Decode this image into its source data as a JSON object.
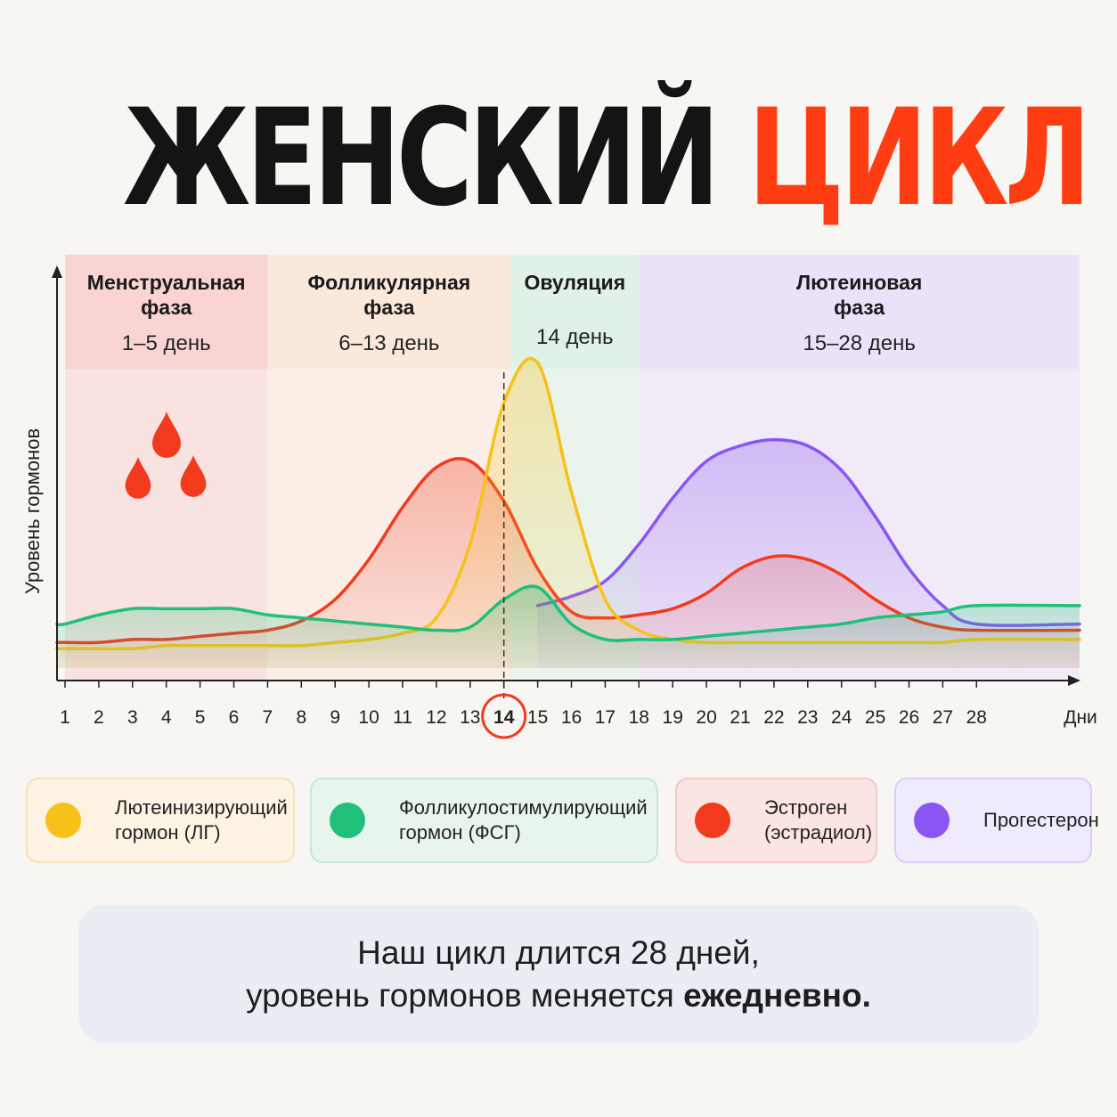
{
  "title": {
    "word1": "ЖЕНСКИЙ",
    "word2": "ЦИКЛ"
  },
  "colors": {
    "accent": "#ff3d12",
    "lh": "#f6c21a",
    "fsh": "#1ec07a",
    "estrogen": "#f23a1e",
    "progesterone": "#8a55f2"
  },
  "phases": [
    {
      "name": "Менструальная\nфаза",
      "days": "1–5 день",
      "start": 1,
      "end": 7,
      "color": "#f9d4d2"
    },
    {
      "name": "Фолликулярная\nфаза",
      "days": "6–13 день",
      "start": 7,
      "end": 14.2,
      "color": "#fbe8dc"
    },
    {
      "name": "Овуляция",
      "days": "14 день",
      "start": 14.2,
      "end": 18,
      "color": "#dff2e5"
    },
    {
      "name": "Лютеиновая\nфаза",
      "days": "15–28 день",
      "start": 18,
      "end": 29,
      "color": "#ebe2fa"
    }
  ],
  "legend": [
    {
      "key": "lh",
      "label": "Лютеинизирующий\nгормон (ЛГ)",
      "bg": "#fcf3e3",
      "border": "#f6e3b8",
      "dot": "#f6c21a"
    },
    {
      "key": "fsh",
      "label": "Фолликулостимулирующий\nгормон (ФСГ)",
      "bg": "#e8f5ec",
      "border": "#c5e8d2",
      "dot": "#1ec07a"
    },
    {
      "key": "estrogen",
      "label": "Эстроген\n(эстрадиол)",
      "bg": "#fbe5e3",
      "border": "#f4c8c4",
      "dot": "#f23a1e"
    },
    {
      "key": "progesterone",
      "label": "Прогестерон",
      "bg": "#efeafc",
      "border": "#dacff6",
      "dot": "#8a55f2"
    }
  ],
  "note": {
    "line1": "Наш цикл длится 28 дней,",
    "line2_prefix": "уровень гормонов меняется",
    "line2_bold": "ежедневно."
  },
  "chart_data": {
    "type": "line",
    "ylabel": "Уровень гормонов",
    "xunit": "Дни",
    "x": [
      1,
      2,
      3,
      4,
      5,
      6,
      7,
      8,
      9,
      10,
      11,
      12,
      13,
      14,
      15,
      16,
      17,
      18,
      19,
      20,
      21,
      22,
      23,
      24,
      25,
      26,
      27,
      28
    ],
    "highlight_day": 14,
    "ovulation_line_day": 14,
    "series": [
      {
        "key": "lh",
        "name": "Лютеинизирующий гормон (ЛГ)",
        "color": "#f6c21a",
        "values": [
          0.04,
          0.04,
          0.04,
          0.05,
          0.05,
          0.05,
          0.05,
          0.05,
          0.06,
          0.07,
          0.09,
          0.14,
          0.38,
          0.84,
          0.97,
          0.55,
          0.2,
          0.1,
          0.07,
          0.06,
          0.06,
          0.06,
          0.06,
          0.06,
          0.06,
          0.06,
          0.06,
          0.07
        ]
      },
      {
        "key": "fsh",
        "name": "Фолликулостимулирующий гормон (ФСГ)",
        "color": "#1ec07a",
        "values": [
          0.12,
          0.15,
          0.17,
          0.17,
          0.17,
          0.17,
          0.15,
          0.14,
          0.13,
          0.12,
          0.11,
          0.1,
          0.11,
          0.2,
          0.24,
          0.12,
          0.07,
          0.07,
          0.07,
          0.08,
          0.09,
          0.1,
          0.11,
          0.12,
          0.14,
          0.15,
          0.16,
          0.18
        ]
      },
      {
        "key": "estrogen",
        "name": "Эстроген (эстрадиол)",
        "color": "#f23a1e",
        "values": [
          0.06,
          0.06,
          0.07,
          0.07,
          0.08,
          0.09,
          0.1,
          0.13,
          0.2,
          0.33,
          0.5,
          0.63,
          0.65,
          0.52,
          0.3,
          0.16,
          0.14,
          0.15,
          0.17,
          0.22,
          0.3,
          0.34,
          0.33,
          0.28,
          0.2,
          0.14,
          0.11,
          0.1
        ]
      },
      {
        "key": "progesterone",
        "name": "Прогестерон",
        "color": "#8a55f2",
        "values": [
          null,
          null,
          null,
          null,
          null,
          null,
          null,
          null,
          null,
          null,
          null,
          null,
          null,
          null,
          0.18,
          0.21,
          0.26,
          0.38,
          0.53,
          0.65,
          0.7,
          0.72,
          0.7,
          0.62,
          0.47,
          0.3,
          0.18,
          0.12
        ]
      }
    ]
  }
}
